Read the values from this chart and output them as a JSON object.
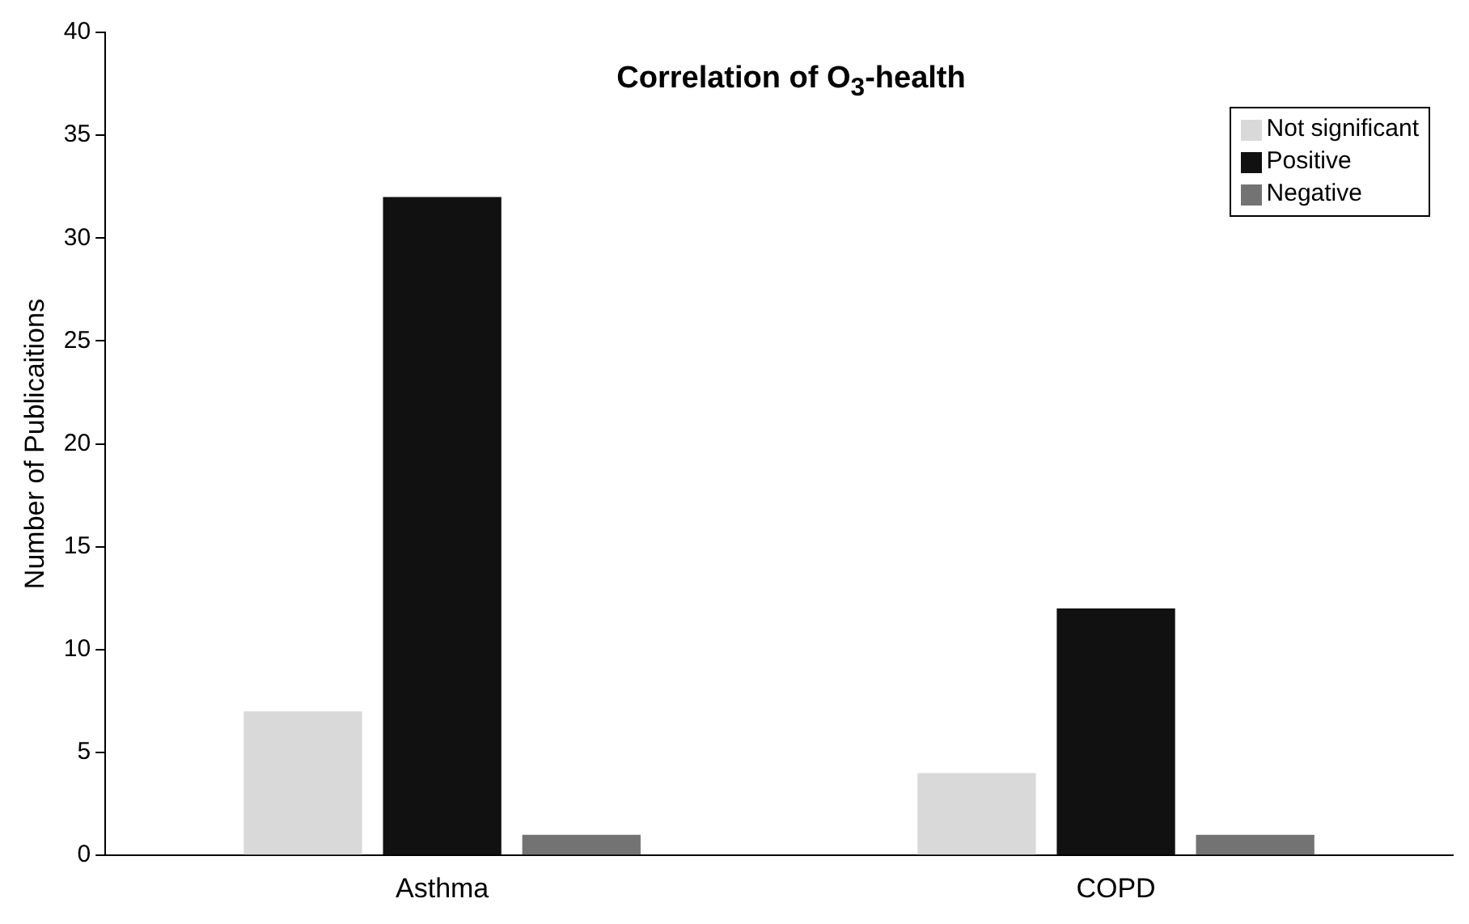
{
  "chart_data": {
    "type": "bar",
    "title": "Correlation of O$_{3}$-health",
    "ylabel": "Number of Publicaitions",
    "categories": [
      "Asthma",
      "COPD"
    ],
    "series": [
      {
        "name": "Not significant",
        "color": "#d9d9d9",
        "values": [
          7,
          4
        ]
      },
      {
        "name": "Positive",
        "color": "#111111",
        "values": [
          32,
          12
        ]
      },
      {
        "name": "Negative",
        "color": "#737373",
        "values": [
          1,
          1
        ]
      }
    ],
    "ylim": [
      0,
      40
    ],
    "yticks": [
      0,
      5,
      10,
      15,
      20,
      25,
      30,
      35,
      40
    ],
    "grid": false,
    "legend": "top right"
  }
}
